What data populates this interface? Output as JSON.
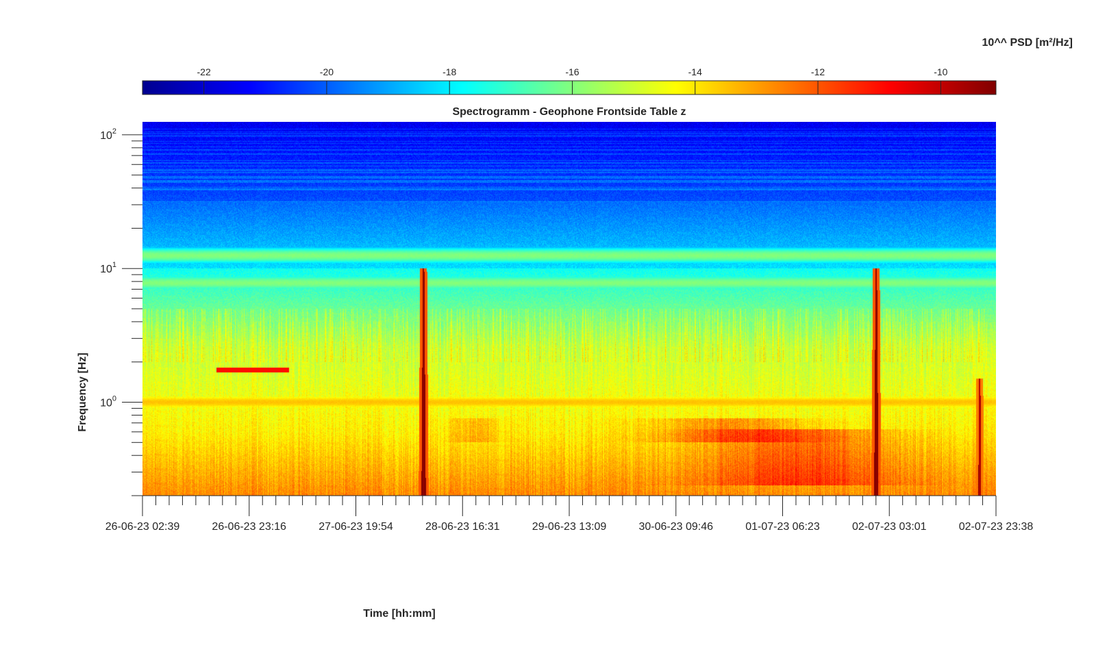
{
  "chart_data": {
    "type": "heatmap",
    "title": "Spectrogramm - Geophone Frontside Table z",
    "xlabel": "Time [hh:mm]",
    "ylabel": "Frequency [Hz]",
    "colorbar_label": "10^^ PSD [m²/Hz]",
    "colorbar_ticks": [
      -22,
      -20,
      -18,
      -16,
      -14,
      -12,
      -10
    ],
    "colorbar_range": [
      -23,
      -9.1
    ],
    "colormap": "jet",
    "x_ticks": [
      "26-06-23 02:39",
      "26-06-23 23:16",
      "27-06-23 19:54",
      "28-06-23 16:31",
      "29-06-23 13:09",
      "30-06-23 09:46",
      "01-07-23 06:23",
      "02-07-23 03:01",
      "02-07-23 23:38"
    ],
    "x_range": [
      "26-06-23 02:39",
      "02-07-23 23:38"
    ],
    "y_scale": "log",
    "y_range": [
      0.2,
      125
    ],
    "y_tick_labels": [
      {
        "value": 1,
        "base": "10",
        "exp": "0"
      },
      {
        "value": 10,
        "base": "10",
        "exp": "1"
      },
      {
        "value": 100,
        "base": "10",
        "exp": "2"
      }
    ],
    "features": [
      {
        "kind": "spike",
        "time": "28-06-23 09:00",
        "f_top": 10,
        "level": -9.5
      },
      {
        "kind": "spike",
        "time": "02-07-23 00:30",
        "f_top": 10,
        "level": -9.5
      },
      {
        "kind": "spike",
        "time": "02-07-23 20:30",
        "f_top": 1.5,
        "level": -10
      },
      {
        "kind": "tone",
        "t_start": "26-06-23 17:00",
        "t_end": "27-06-23 07:00",
        "freq": 1.75,
        "level": -11
      },
      {
        "kind": "line",
        "freq": 12.5,
        "level": -16
      },
      {
        "kind": "line",
        "freq": 7.8,
        "level": -16
      },
      {
        "kind": "line",
        "freq": 1.0,
        "level": -13.5
      }
    ]
  }
}
